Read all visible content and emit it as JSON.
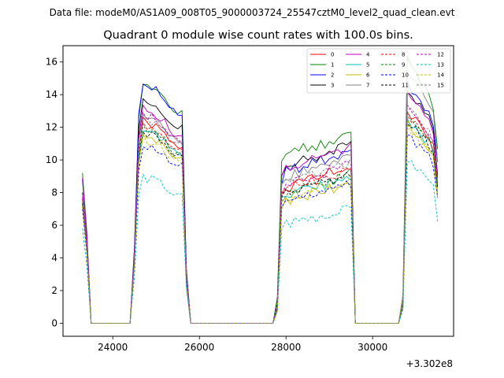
{
  "chart_data": {
    "type": "line",
    "suptitle": "Data file: modeM0/AS1A09_008T05_9000003724_25547cztM0_level2_quad_clean.evt",
    "title": "Quadrant 0 module wise count rates with 100.0s bins.",
    "xlabel": "",
    "ylabel": "",
    "x_offset_label": "+3.302e8",
    "xlim": [
      22850,
      31870
    ],
    "ylim": [
      -0.8,
      17
    ],
    "xticks": [
      24000,
      26000,
      28000,
      30000
    ],
    "yticks": [
      0,
      2,
      4,
      6,
      8,
      10,
      12,
      14,
      16
    ],
    "legend_position": "top-right",
    "profile": {
      "x_start": 23300,
      "x_step": 100,
      "length": 83,
      "p1": [
        0.78,
        0.48,
        0.0,
        0.0,
        0.0,
        0.0,
        0.0,
        0.0,
        0.0,
        0.0,
        0.0,
        0.0,
        0.32,
        0.86,
        1.0,
        0.98,
        0.98,
        0.97,
        0.95,
        0.93,
        0.9,
        0.88,
        0.86,
        0.87,
        0.22,
        0.0,
        0.0,
        0.0,
        0.0,
        0.0,
        0.0,
        0.0,
        0.0,
        0.0,
        0.0,
        0.0,
        0.0,
        0.0,
        0.0,
        0.0,
        0.0,
        0.0,
        0.0,
        0.0,
        0.0,
        0.11,
        0.83,
        0.88,
        0.87,
        0.9,
        0.89,
        0.92,
        0.91,
        0.93,
        0.92,
        0.95,
        0.93,
        0.96,
        0.95,
        0.97,
        0.98,
        0.99,
        1.0,
        0.0,
        0.0,
        0.0,
        0.0,
        0.0,
        0.0,
        0.0,
        0.0,
        0.0,
        0.0,
        0.0,
        0.1,
        1.0,
        0.97,
        0.95,
        0.93,
        0.9,
        0.88,
        0.83,
        0.65
      ]
    },
    "series": [
      {
        "name": "0",
        "color": "#ff0000",
        "dash": "solid",
        "level": 12.4,
        "start": 7.8,
        "peak2": 9.6,
        "peak3": 13.0
      },
      {
        "name": "1",
        "color": "#008000",
        "dash": "solid",
        "level": 14.8,
        "start": 9.2,
        "peak2": 11.8,
        "peak3": 16.1
      },
      {
        "name": "2",
        "color": "#0000ff",
        "dash": "solid",
        "level": 14.7,
        "start": 8.8,
        "peak2": 10.6,
        "peak3": 14.8
      },
      {
        "name": "3",
        "color": "#000000",
        "dash": "solid",
        "level": 13.7,
        "start": 8.0,
        "peak2": 11.0,
        "peak3": 14.4
      },
      {
        "name": "4",
        "color": "#bf00bf",
        "dash": "solid",
        "level": 13.2,
        "start": 8.9,
        "peak2": 10.8,
        "peak3": 14.0
      },
      {
        "name": "5",
        "color": "#00bfbf",
        "dash": "solid",
        "level": 12.0,
        "start": 7.5,
        "peak2": 9.0,
        "peak3": 12.6
      },
      {
        "name": "6",
        "color": "#bfbf00",
        "dash": "solid",
        "level": 11.6,
        "start": 7.2,
        "peak2": 8.6,
        "peak3": 12.2
      },
      {
        "name": "7",
        "color": "#808080",
        "dash": "solid",
        "level": 12.8,
        "start": 7.9,
        "peak2": 10.3,
        "peak3": 15.3
      },
      {
        "name": "8",
        "color": "#ff0000",
        "dash": "dashed",
        "level": 12.2,
        "start": 7.6,
        "peak2": 9.4,
        "peak3": 12.9
      },
      {
        "name": "9",
        "color": "#008000",
        "dash": "dashed",
        "level": 12.0,
        "start": 7.4,
        "peak2": 9.2,
        "peak3": 12.8
      },
      {
        "name": "10",
        "color": "#0000ff",
        "dash": "dashed",
        "level": 11.0,
        "start": 7.0,
        "peak2": 8.6,
        "peak3": 11.6
      },
      {
        "name": "11",
        "color": "#000000",
        "dash": "dashed",
        "level": 11.8,
        "start": 7.3,
        "peak2": 9.1,
        "peak3": 12.5
      },
      {
        "name": "12",
        "color": "#bf00bf",
        "dash": "dashed",
        "level": 12.9,
        "start": 7.7,
        "peak2": 9.8,
        "peak3": 13.3
      },
      {
        "name": "13",
        "color": "#00bfbf",
        "dash": "dashed",
        "level": 9.0,
        "start": 5.8,
        "peak2": 7.0,
        "peak3": 10.0
      },
      {
        "name": "14",
        "color": "#bfbf00",
        "dash": "dashed",
        "level": 11.4,
        "start": 7.1,
        "peak2": 8.9,
        "peak3": 12.0
      },
      {
        "name": "15",
        "color": "#808080",
        "dash": "dashed",
        "level": 12.6,
        "start": 7.5,
        "peak2": 9.9,
        "peak3": 13.4
      }
    ]
  }
}
